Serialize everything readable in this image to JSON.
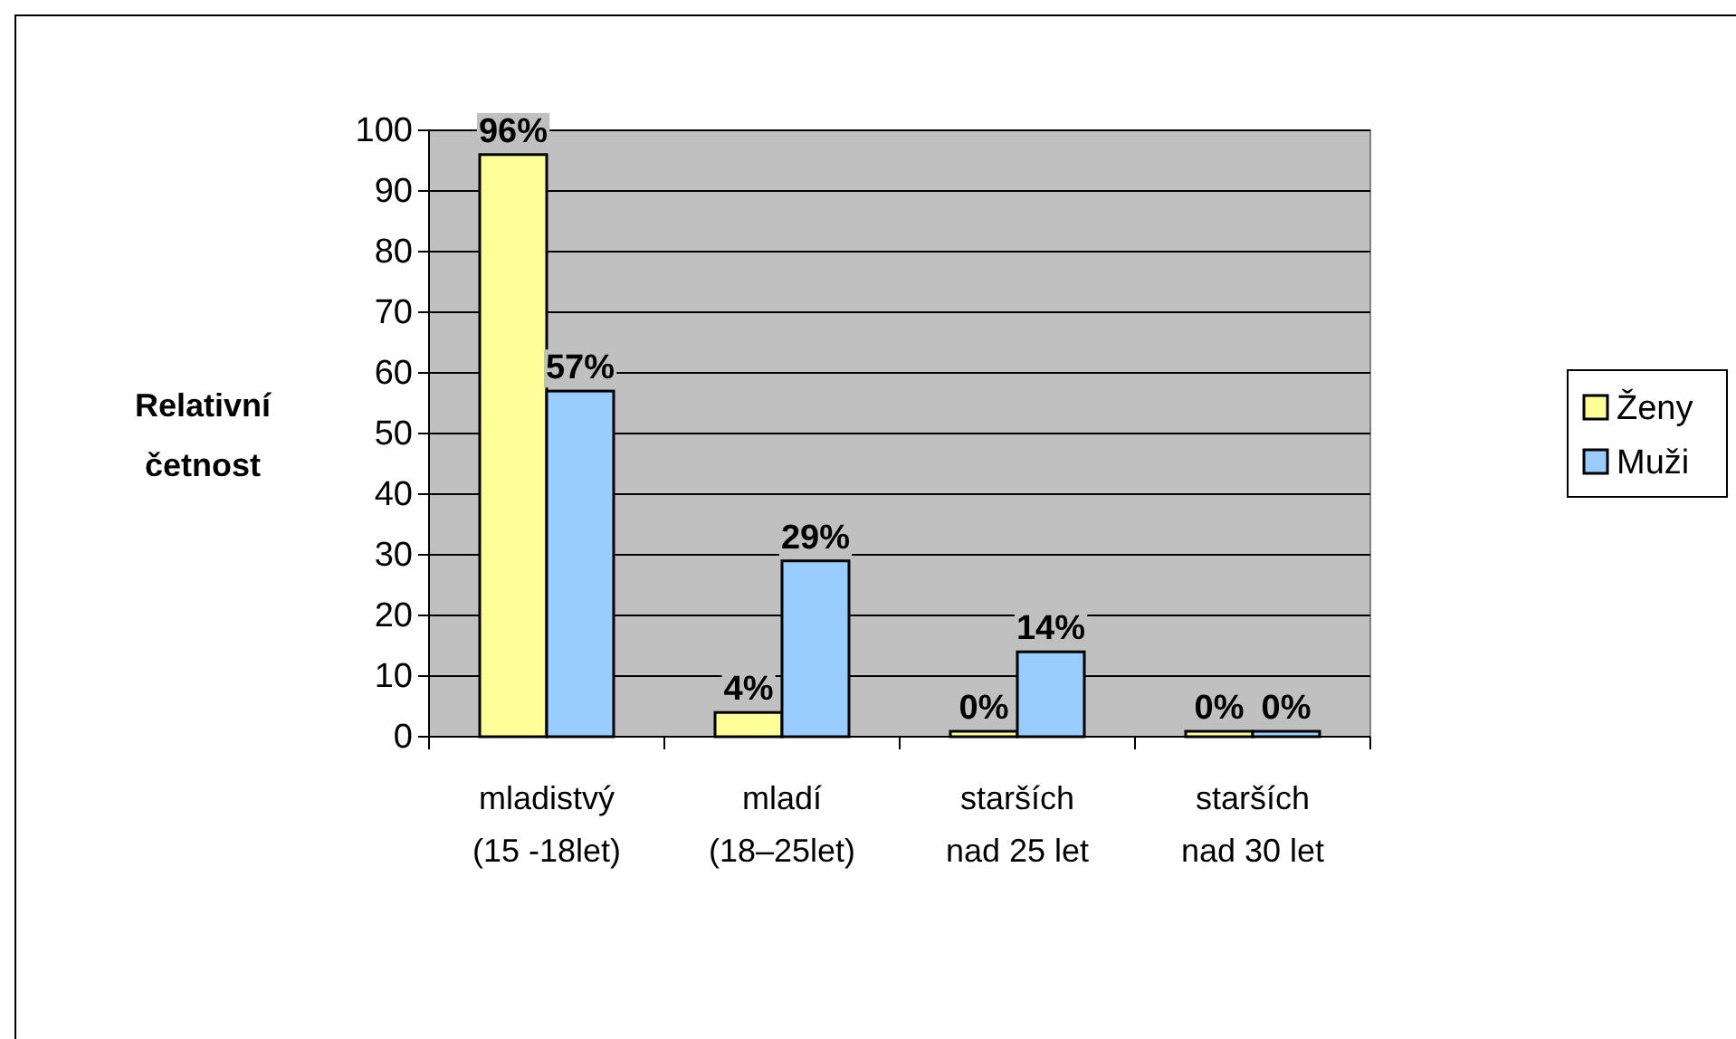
{
  "chart_data": {
    "type": "bar",
    "ylabel": "Relativní četnost",
    "categories": [
      "mladistvý (15 -18let)",
      "mladí (18–25let)",
      "starších nad 25 let",
      "starších nad 30 let"
    ],
    "series": [
      {
        "name": "Ženy",
        "color": "#ffff99",
        "values": [
          96,
          4,
          0,
          0
        ],
        "value_labels": [
          "96%",
          "4%",
          "0%",
          "0%"
        ]
      },
      {
        "name": "Muži",
        "color": "#99ccff",
        "values": [
          57,
          29,
          14,
          0
        ],
        "value_labels": [
          "57%",
          "29%",
          "14%",
          "0%"
        ]
      }
    ],
    "ylim": [
      0,
      100
    ],
    "yticks": [
      0,
      10,
      20,
      30,
      40,
      50,
      60,
      70,
      80,
      90,
      100
    ],
    "grid": "y",
    "legend": "right"
  }
}
